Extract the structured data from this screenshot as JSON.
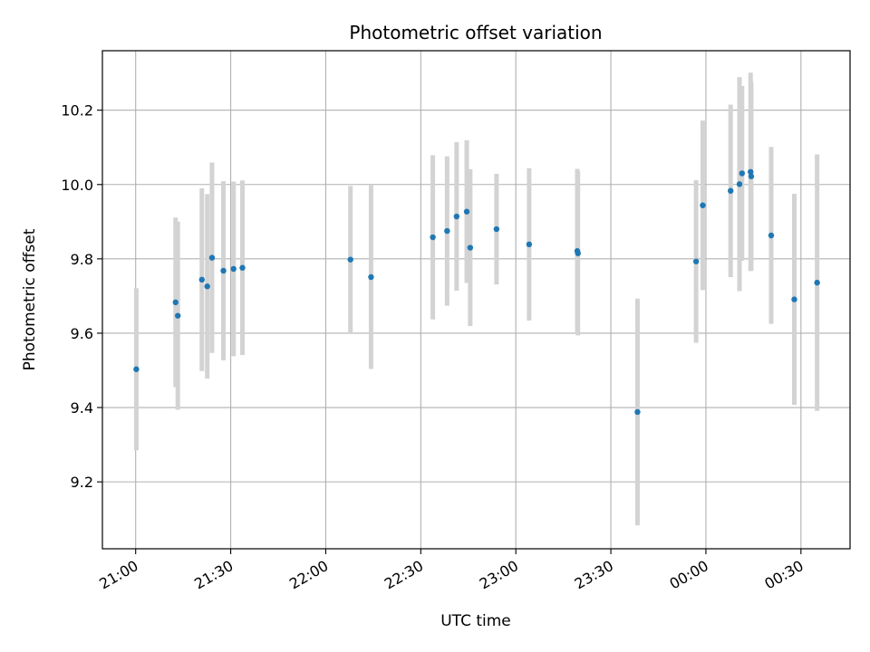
{
  "chart_data": {
    "type": "scatter",
    "title": "Photometric offset variation",
    "xlabel": "UTC time",
    "ylabel": "Photometric offset",
    "x_unit": "minutes after 21:00 UTC",
    "xlim": [
      -10.5,
      225.5
    ],
    "ylim": [
      9.02,
      10.36
    ],
    "grid": true,
    "legend": "none",
    "x_ticks": [
      {
        "value": 0,
        "label": "21:00"
      },
      {
        "value": 30,
        "label": "21:30"
      },
      {
        "value": 60,
        "label": "22:00"
      },
      {
        "value": 90,
        "label": "22:30"
      },
      {
        "value": 120,
        "label": "23:00"
      },
      {
        "value": 150,
        "label": "23:30"
      },
      {
        "value": 180,
        "label": "00:00"
      },
      {
        "value": 210,
        "label": "00:30"
      }
    ],
    "y_ticks": [
      {
        "value": 9.2,
        "label": "9.2"
      },
      {
        "value": 9.4,
        "label": "9.4"
      },
      {
        "value": 9.6,
        "label": "9.6"
      },
      {
        "value": 9.8,
        "label": "9.8"
      },
      {
        "value": 10.0,
        "label": "10.0"
      },
      {
        "value": 10.2,
        "label": "10.2"
      }
    ],
    "marker_color": "#1f77b4",
    "errorbar_color": "#d3d3d3",
    "points": [
      {
        "x": 0.2,
        "y": 9.503,
        "err": 0.218
      },
      {
        "x": 12.6,
        "y": 9.683,
        "err": 0.228
      },
      {
        "x": 13.3,
        "y": 9.647,
        "err": 0.253
      },
      {
        "x": 20.9,
        "y": 9.744,
        "err": 0.246
      },
      {
        "x": 22.6,
        "y": 9.726,
        "err": 0.248
      },
      {
        "x": 24.1,
        "y": 9.803,
        "err": 0.256
      },
      {
        "x": 27.7,
        "y": 9.768,
        "err": 0.241
      },
      {
        "x": 30.9,
        "y": 9.773,
        "err": 0.235
      },
      {
        "x": 33.7,
        "y": 9.776,
        "err": 0.235
      },
      {
        "x": 67.8,
        "y": 9.798,
        "err": 0.198
      },
      {
        "x": 74.3,
        "y": 9.751,
        "err": 0.247
      },
      {
        "x": 93.8,
        "y": 9.858,
        "err": 0.221
      },
      {
        "x": 98.3,
        "y": 9.875,
        "err": 0.201
      },
      {
        "x": 101.3,
        "y": 9.914,
        "err": 0.2
      },
      {
        "x": 104.5,
        "y": 9.927,
        "err": 0.192
      },
      {
        "x": 105.6,
        "y": 9.83,
        "err": 0.211
      },
      {
        "x": 113.9,
        "y": 9.88,
        "err": 0.149
      },
      {
        "x": 124.2,
        "y": 9.839,
        "err": 0.205
      },
      {
        "x": 139.4,
        "y": 9.821,
        "err": 0.221
      },
      {
        "x": 139.6,
        "y": 9.815,
        "err": 0.221
      },
      {
        "x": 158.4,
        "y": 9.388,
        "err": 0.305
      },
      {
        "x": 176.9,
        "y": 9.793,
        "err": 0.219
      },
      {
        "x": 179.0,
        "y": 9.944,
        "err": 0.228
      },
      {
        "x": 187.8,
        "y": 9.983,
        "err": 0.232
      },
      {
        "x": 190.6,
        "y": 10.001,
        "err": 0.288
      },
      {
        "x": 191.4,
        "y": 10.03,
        "err": 0.235
      },
      {
        "x": 194.1,
        "y": 10.034,
        "err": 0.267
      },
      {
        "x": 194.3,
        "y": 10.022,
        "err": 0.254
      },
      {
        "x": 200.6,
        "y": 9.863,
        "err": 0.238
      },
      {
        "x": 207.9,
        "y": 9.691,
        "err": 0.284
      },
      {
        "x": 215.1,
        "y": 9.736,
        "err": 0.345
      }
    ]
  }
}
